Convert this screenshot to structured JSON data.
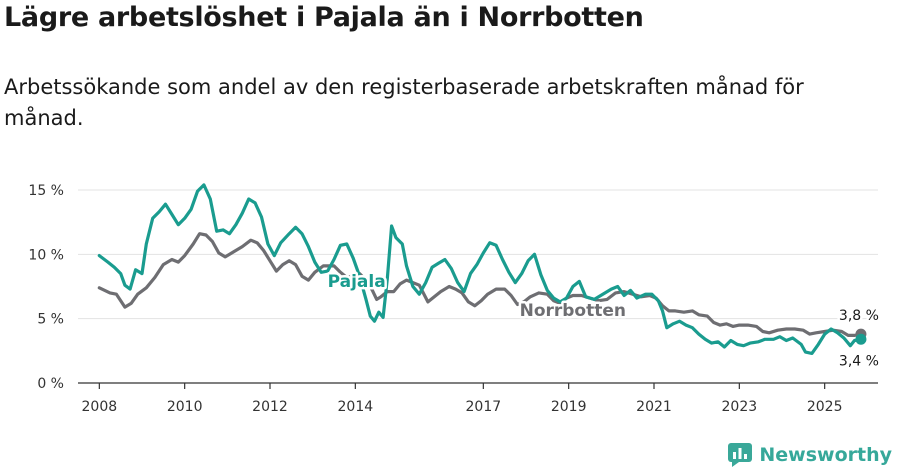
{
  "title": "Lägre arbetslöshet i Pajala än i Norrbotten",
  "subtitle": "Arbetssökande som andel av den registerbaserade arbetskraften månad för månad.",
  "brand": "Newsworthy",
  "colors": {
    "pajala": "#1a9c8f",
    "norrbotten": "#6e6e72",
    "grid": "#e3e3e3",
    "axis": "#333333"
  },
  "chart_data": {
    "type": "line",
    "title": "Lägre arbetslöshet i Pajala än i Norrbotten",
    "xlabel": "",
    "ylabel": "",
    "xlim": [
      2007.5,
      2026.25
    ],
    "ylim": [
      0,
      15
    ],
    "grid": true,
    "x_ticks": [
      {
        "value": 2008,
        "label": "2008"
      },
      {
        "value": 2010,
        "label": "2010"
      },
      {
        "value": 2012,
        "label": "2012"
      },
      {
        "value": 2014,
        "label": "2014"
      },
      {
        "value": 2017,
        "label": "2017"
      },
      {
        "value": 2019,
        "label": "2019"
      },
      {
        "value": 2021,
        "label": "2021"
      },
      {
        "value": 2023,
        "label": "2023"
      },
      {
        "value": 2025,
        "label": "2025"
      }
    ],
    "y_ticks": [
      {
        "value": 0,
        "label": "0 %"
      },
      {
        "value": 5,
        "label": "5 %"
      },
      {
        "value": 10,
        "label": "10 %"
      },
      {
        "value": 15,
        "label": "15 %"
      }
    ],
    "series": [
      {
        "name": "Norrbotten",
        "label": "Norrbotten",
        "end_label": "3,8 %",
        "points": [
          [
            2008.0,
            7.4
          ],
          [
            2008.25,
            7.0
          ],
          [
            2008.4,
            6.9
          ],
          [
            2008.5,
            6.4
          ],
          [
            2008.6,
            5.9
          ],
          [
            2008.75,
            6.2
          ],
          [
            2008.9,
            6.9
          ],
          [
            2009.1,
            7.4
          ],
          [
            2009.3,
            8.2
          ],
          [
            2009.5,
            9.2
          ],
          [
            2009.7,
            9.6
          ],
          [
            2009.85,
            9.4
          ],
          [
            2010.0,
            9.9
          ],
          [
            2010.2,
            10.8
          ],
          [
            2010.35,
            11.6
          ],
          [
            2010.5,
            11.5
          ],
          [
            2010.65,
            11.0
          ],
          [
            2010.8,
            10.1
          ],
          [
            2010.95,
            9.8
          ],
          [
            2011.15,
            10.2
          ],
          [
            2011.35,
            10.6
          ],
          [
            2011.55,
            11.1
          ],
          [
            2011.7,
            10.9
          ],
          [
            2011.85,
            10.3
          ],
          [
            2012.0,
            9.5
          ],
          [
            2012.15,
            8.7
          ],
          [
            2012.3,
            9.2
          ],
          [
            2012.45,
            9.5
          ],
          [
            2012.6,
            9.2
          ],
          [
            2012.75,
            8.3
          ],
          [
            2012.9,
            8.0
          ],
          [
            2013.05,
            8.6
          ],
          [
            2013.25,
            9.1
          ],
          [
            2013.5,
            9.1
          ],
          [
            2013.65,
            8.6
          ],
          [
            2013.8,
            8.2
          ],
          [
            2013.95,
            8.3
          ],
          [
            2014.1,
            8.5
          ],
          [
            2014.25,
            8.0
          ],
          [
            2014.4,
            7.2
          ],
          [
            2014.5,
            6.5
          ],
          [
            2014.6,
            6.7
          ],
          [
            2014.75,
            7.1
          ],
          [
            2014.9,
            7.1
          ],
          [
            2015.05,
            7.7
          ],
          [
            2015.2,
            8.0
          ],
          [
            2015.35,
            7.8
          ],
          [
            2015.5,
            7.6
          ],
          [
            2015.7,
            6.3
          ],
          [
            2015.85,
            6.7
          ],
          [
            2016.0,
            7.1
          ],
          [
            2016.2,
            7.5
          ],
          [
            2016.35,
            7.3
          ],
          [
            2016.5,
            7.0
          ],
          [
            2016.65,
            6.3
          ],
          [
            2016.8,
            6.0
          ],
          [
            2016.95,
            6.4
          ],
          [
            2017.1,
            6.9
          ],
          [
            2017.3,
            7.3
          ],
          [
            2017.5,
            7.3
          ],
          [
            2017.65,
            6.8
          ],
          [
            2017.8,
            6.1
          ],
          [
            2017.95,
            6.3
          ],
          [
            2018.1,
            6.7
          ],
          [
            2018.3,
            7.0
          ],
          [
            2018.5,
            6.9
          ],
          [
            2018.65,
            6.4
          ],
          [
            2018.8,
            6.2
          ],
          [
            2018.95,
            6.6
          ],
          [
            2019.1,
            6.8
          ],
          [
            2019.3,
            6.8
          ],
          [
            2019.5,
            6.6
          ],
          [
            2019.7,
            6.4
          ],
          [
            2019.9,
            6.5
          ],
          [
            2020.1,
            7.0
          ],
          [
            2020.3,
            7.1
          ],
          [
            2020.5,
            6.9
          ],
          [
            2020.7,
            6.7
          ],
          [
            2020.9,
            6.8
          ],
          [
            2021.05,
            6.6
          ],
          [
            2021.2,
            6.0
          ],
          [
            2021.35,
            5.6
          ],
          [
            2021.5,
            5.6
          ],
          [
            2021.7,
            5.5
          ],
          [
            2021.9,
            5.6
          ],
          [
            2022.05,
            5.3
          ],
          [
            2022.25,
            5.2
          ],
          [
            2022.4,
            4.7
          ],
          [
            2022.55,
            4.5
          ],
          [
            2022.7,
            4.6
          ],
          [
            2022.85,
            4.4
          ],
          [
            2023.0,
            4.5
          ],
          [
            2023.2,
            4.5
          ],
          [
            2023.4,
            4.4
          ],
          [
            2023.55,
            4.0
          ],
          [
            2023.7,
            3.9
          ],
          [
            2023.9,
            4.1
          ],
          [
            2024.1,
            4.2
          ],
          [
            2024.3,
            4.2
          ],
          [
            2024.5,
            4.1
          ],
          [
            2024.65,
            3.8
          ],
          [
            2024.8,
            3.9
          ],
          [
            2025.0,
            4.0
          ],
          [
            2025.2,
            4.1
          ],
          [
            2025.4,
            4.0
          ],
          [
            2025.55,
            3.7
          ],
          [
            2025.7,
            3.7
          ],
          [
            2025.85,
            3.8
          ]
        ]
      },
      {
        "name": "Pajala",
        "label": "Pajala",
        "end_label": "3,4 %",
        "points": [
          [
            2008.0,
            9.9
          ],
          [
            2008.2,
            9.4
          ],
          [
            2008.35,
            9.0
          ],
          [
            2008.5,
            8.5
          ],
          [
            2008.6,
            7.6
          ],
          [
            2008.72,
            7.3
          ],
          [
            2008.85,
            8.8
          ],
          [
            2009.0,
            8.5
          ],
          [
            2009.1,
            10.8
          ],
          [
            2009.25,
            12.8
          ],
          [
            2009.4,
            13.3
          ],
          [
            2009.55,
            13.9
          ],
          [
            2009.7,
            13.1
          ],
          [
            2009.85,
            12.3
          ],
          [
            2010.0,
            12.8
          ],
          [
            2010.15,
            13.5
          ],
          [
            2010.3,
            14.9
          ],
          [
            2010.45,
            15.4
          ],
          [
            2010.6,
            14.3
          ],
          [
            2010.75,
            11.8
          ],
          [
            2010.9,
            11.9
          ],
          [
            2011.05,
            11.6
          ],
          [
            2011.2,
            12.3
          ],
          [
            2011.35,
            13.2
          ],
          [
            2011.5,
            14.3
          ],
          [
            2011.65,
            14.0
          ],
          [
            2011.8,
            12.9
          ],
          [
            2011.95,
            10.8
          ],
          [
            2012.1,
            9.9
          ],
          [
            2012.25,
            10.9
          ],
          [
            2012.45,
            11.6
          ],
          [
            2012.6,
            12.1
          ],
          [
            2012.75,
            11.6
          ],
          [
            2012.9,
            10.6
          ],
          [
            2013.05,
            9.4
          ],
          [
            2013.2,
            8.6
          ],
          [
            2013.35,
            8.7
          ],
          [
            2013.5,
            9.6
          ],
          [
            2013.65,
            10.7
          ],
          [
            2013.8,
            10.8
          ],
          [
            2013.95,
            9.7
          ],
          [
            2014.1,
            8.3
          ],
          [
            2014.25,
            6.5
          ],
          [
            2014.35,
            5.2
          ],
          [
            2014.45,
            4.8
          ],
          [
            2014.55,
            5.5
          ],
          [
            2014.65,
            5.1
          ],
          [
            2014.75,
            8.1
          ],
          [
            2014.85,
            12.2
          ],
          [
            2014.95,
            11.3
          ],
          [
            2015.1,
            10.8
          ],
          [
            2015.2,
            9.1
          ],
          [
            2015.35,
            7.5
          ],
          [
            2015.5,
            6.9
          ],
          [
            2015.65,
            7.8
          ],
          [
            2015.8,
            9.0
          ],
          [
            2015.95,
            9.3
          ],
          [
            2016.1,
            9.6
          ],
          [
            2016.25,
            8.9
          ],
          [
            2016.4,
            7.8
          ],
          [
            2016.55,
            7.1
          ],
          [
            2016.7,
            8.5
          ],
          [
            2016.85,
            9.2
          ],
          [
            2017.0,
            10.1
          ],
          [
            2017.15,
            10.9
          ],
          [
            2017.3,
            10.7
          ],
          [
            2017.45,
            9.6
          ],
          [
            2017.6,
            8.6
          ],
          [
            2017.75,
            7.8
          ],
          [
            2017.9,
            8.5
          ],
          [
            2018.05,
            9.5
          ],
          [
            2018.2,
            10.0
          ],
          [
            2018.35,
            8.4
          ],
          [
            2018.5,
            7.2
          ],
          [
            2018.65,
            6.6
          ],
          [
            2018.8,
            6.3
          ],
          [
            2018.95,
            6.6
          ],
          [
            2019.1,
            7.5
          ],
          [
            2019.25,
            7.9
          ],
          [
            2019.4,
            6.7
          ],
          [
            2019.6,
            6.5
          ],
          [
            2019.8,
            6.9
          ],
          [
            2020.0,
            7.3
          ],
          [
            2020.15,
            7.5
          ],
          [
            2020.3,
            6.8
          ],
          [
            2020.45,
            7.2
          ],
          [
            2020.6,
            6.6
          ],
          [
            2020.8,
            6.9
          ],
          [
            2020.95,
            6.9
          ],
          [
            2021.1,
            6.4
          ],
          [
            2021.2,
            5.6
          ],
          [
            2021.3,
            4.3
          ],
          [
            2021.45,
            4.6
          ],
          [
            2021.6,
            4.8
          ],
          [
            2021.75,
            4.5
          ],
          [
            2021.9,
            4.3
          ],
          [
            2022.05,
            3.8
          ],
          [
            2022.2,
            3.4
          ],
          [
            2022.35,
            3.1
          ],
          [
            2022.5,
            3.2
          ],
          [
            2022.65,
            2.8
          ],
          [
            2022.8,
            3.3
          ],
          [
            2022.95,
            3.0
          ],
          [
            2023.1,
            2.9
          ],
          [
            2023.25,
            3.1
          ],
          [
            2023.45,
            3.2
          ],
          [
            2023.6,
            3.4
          ],
          [
            2023.8,
            3.4
          ],
          [
            2023.95,
            3.6
          ],
          [
            2024.1,
            3.3
          ],
          [
            2024.25,
            3.5
          ],
          [
            2024.45,
            3.0
          ],
          [
            2024.55,
            2.4
          ],
          [
            2024.7,
            2.3
          ],
          [
            2024.85,
            3.0
          ],
          [
            2025.0,
            3.8
          ],
          [
            2025.15,
            4.2
          ],
          [
            2025.3,
            3.9
          ],
          [
            2025.45,
            3.5
          ],
          [
            2025.6,
            2.9
          ],
          [
            2025.7,
            3.3
          ],
          [
            2025.85,
            3.4
          ]
        ]
      }
    ]
  }
}
